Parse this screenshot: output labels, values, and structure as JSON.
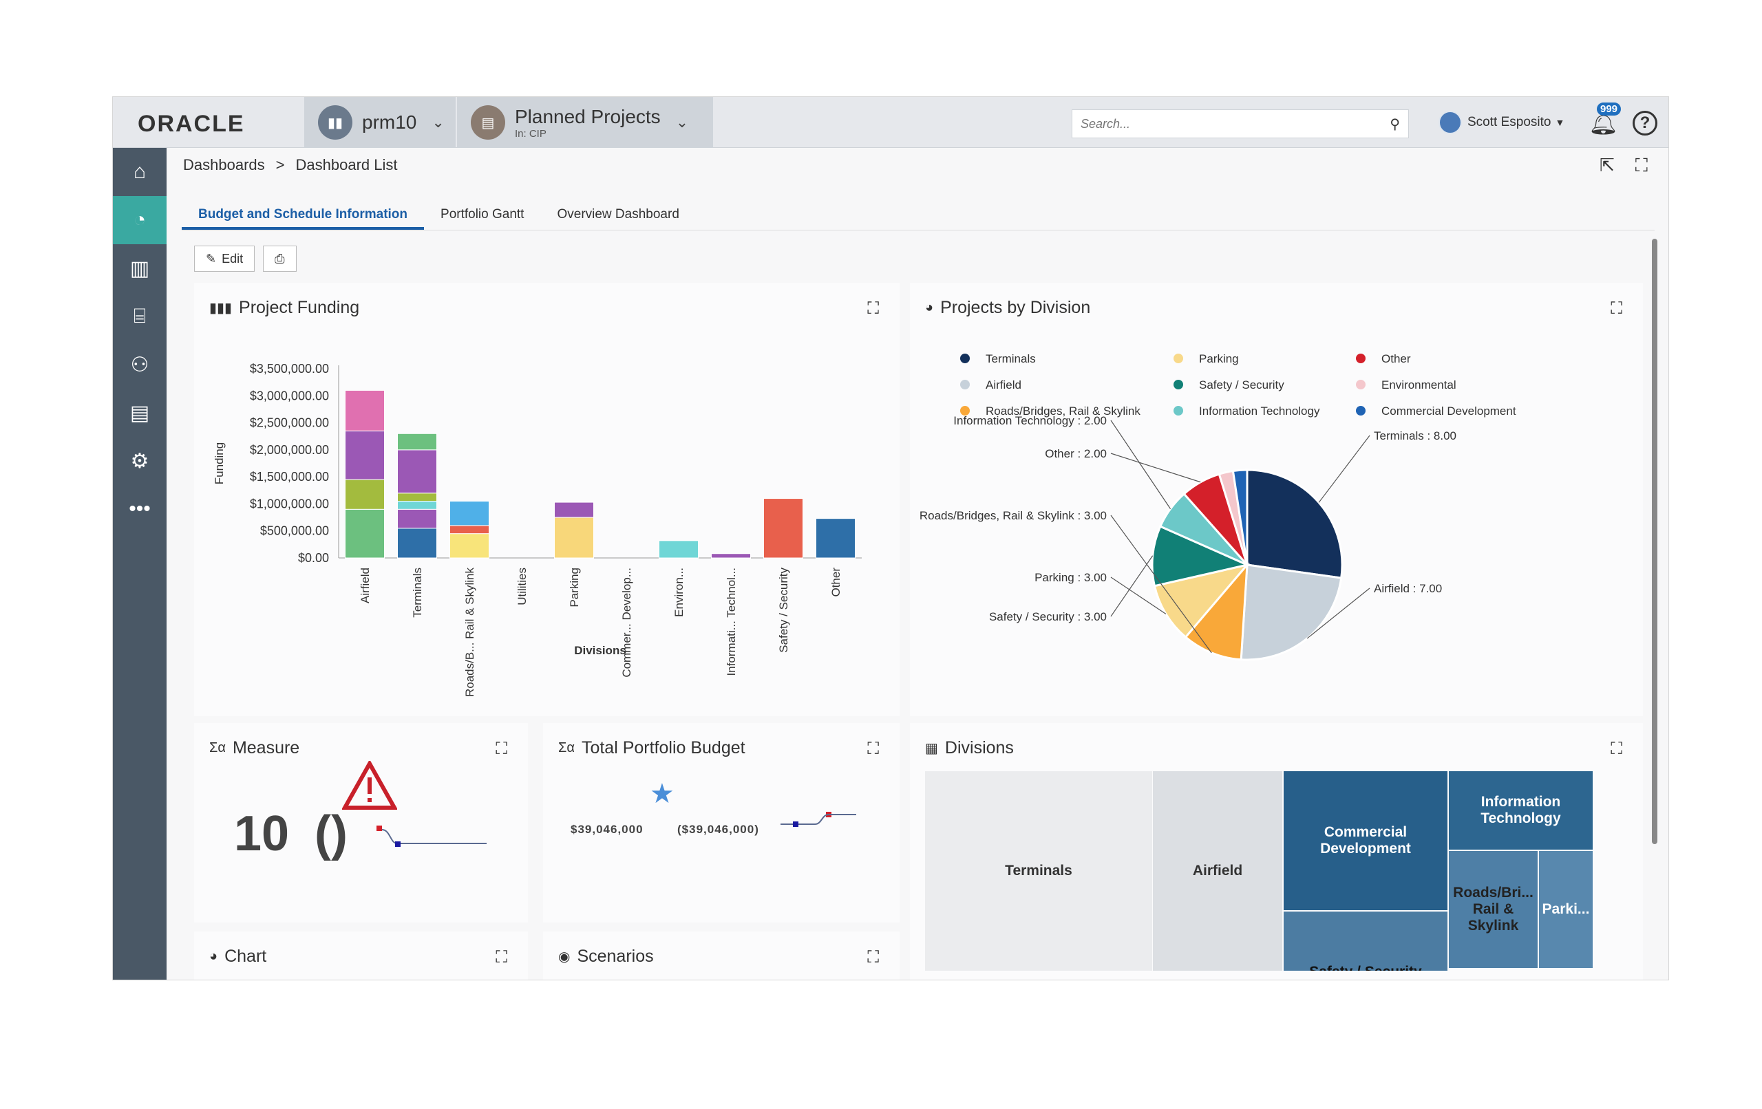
{
  "header": {
    "logo": "ORACLE",
    "context1": {
      "label": "prm10"
    },
    "context2": {
      "label": "Planned Projects",
      "sub": "In: CIP"
    },
    "search_placeholder": "Search...",
    "user_name": "Scott Esposito",
    "notification_count": "999"
  },
  "breadcrumb": {
    "root": "Dashboards",
    "separator": ">",
    "current": "Dashboard List"
  },
  "tabs": [
    "Budget and Schedule Information",
    "Portfolio Gantt",
    "Overview Dashboard"
  ],
  "toolbar": {
    "edit_label": "Edit"
  },
  "panels": {
    "project_funding": "Project Funding",
    "projects_by_division": "Projects by Division",
    "measure": "Measure",
    "total_portfolio_budget": "Total Portfolio Budget",
    "divisions": "Divisions",
    "chart": "Chart",
    "scenarios": "Scenarios"
  },
  "measure": {
    "value": "10",
    "paren": "()"
  },
  "tpb": {
    "value": "$39,046,000",
    "paren_value": "($39,046,000)"
  },
  "colors": {
    "accent": "#1b5ea6",
    "sidebar": "#4a5866",
    "sidebar_active": "#3aa9a1"
  },
  "chart_data": [
    {
      "type": "bar",
      "stacked": true,
      "title": "Project Funding",
      "xlabel": "Divisions",
      "ylabel": "Funding",
      "ylim": [
        0,
        3500000
      ],
      "yticks": [
        "$0.00",
        "$500,000.00",
        "$1,000,000.00",
        "$1,500,000.00",
        "$2,000,000.00",
        "$2,500,000.00",
        "$3,000,000.00",
        "$3,500,000.00"
      ],
      "categories": [
        "Airfield",
        "Terminals",
        "Roads/B... Rail & Skylink",
        "Utilities",
        "Parking",
        "Commer... Develop...",
        "Environ...",
        "Informati... Technol...",
        "Safety / Security",
        "Other"
      ],
      "segments": [
        [
          {
            "value": 900000,
            "color": "#6cc07f"
          },
          {
            "value": 550000,
            "color": "#a3bb3e"
          },
          {
            "value": 900000,
            "color": "#9b58b5"
          },
          {
            "value": 750000,
            "color": "#e070b0"
          }
        ],
        [
          {
            "value": 550000,
            "color": "#2e6fa8"
          },
          {
            "value": 350000,
            "color": "#9b58b5"
          },
          {
            "value": 150000,
            "color": "#6fd6d6"
          },
          {
            "value": 150000,
            "color": "#a3bb3e"
          },
          {
            "value": 800000,
            "color": "#9b58b5"
          },
          {
            "value": 300000,
            "color": "#6cc07f"
          }
        ],
        [
          {
            "value": 450000,
            "color": "#f8e47a"
          },
          {
            "value": 150000,
            "color": "#e8604c"
          },
          {
            "value": 450000,
            "color": "#4fb0e8"
          }
        ],
        [],
        [
          {
            "value": 750000,
            "color": "#f8d77a"
          },
          {
            "value": 280000,
            "color": "#9b58b5"
          }
        ],
        [],
        [
          {
            "value": 320000,
            "color": "#6fd6d6"
          }
        ],
        [
          {
            "value": 80000,
            "color": "#9b58b5"
          }
        ],
        [
          {
            "value": 1100000,
            "color": "#e8604c"
          }
        ],
        [
          {
            "value": 730000,
            "color": "#2e6fa8"
          }
        ]
      ]
    },
    {
      "type": "pie",
      "title": "Projects by Division",
      "legend_position": "top",
      "legend": [
        {
          "name": "Terminals",
          "color": "#13305b"
        },
        {
          "name": "Parking",
          "color": "#f8d98a"
        },
        {
          "name": "Other",
          "color": "#d4202a"
        },
        {
          "name": "Airfield",
          "color": "#c7d1da"
        },
        {
          "name": "Safety / Security",
          "color": "#118076"
        },
        {
          "name": "Environmental",
          "color": "#f4c7cc"
        },
        {
          "name": "Roads/Bridges, Rail & Skylink",
          "color": "#f9a839"
        },
        {
          "name": "Information Technology",
          "color": "#6cc8c8"
        },
        {
          "name": "Commercial Development",
          "color": "#1f63b4"
        }
      ],
      "slices": [
        {
          "name": "Terminals",
          "value": 8.0,
          "color": "#13305b",
          "label": "Terminals : 8.00"
        },
        {
          "name": "Airfield",
          "value": 7.0,
          "color": "#c7d1da",
          "label": "Airfield : 7.00"
        },
        {
          "name": "Roads/Bridges, Rail & Skylink",
          "value": 3.0,
          "color": "#f9a839",
          "label": ""
        },
        {
          "name": "Parking",
          "value": 3.0,
          "color": "#f8d98a",
          "label": "Parking : 3.00"
        },
        {
          "name": "Safety / Security",
          "value": 3.0,
          "color": "#118076",
          "label": "Safety / Security : 3.00"
        },
        {
          "name": "Information Technology",
          "value": 2.0,
          "color": "#6cc8c8",
          "label": "Information Technology : 2.00"
        },
        {
          "name": "Other",
          "value": 2.0,
          "color": "#d4202a",
          "label": "Other : 2.00"
        },
        {
          "name": "Environmental",
          "value": 0.7,
          "color": "#f4c7cc",
          "label": ""
        },
        {
          "name": "Commercial Development",
          "value": 0.7,
          "color": "#1f63b4",
          "label": ""
        }
      ],
      "extra_label": "Roads/Bridges, Rail & Skylink : 3.00"
    }
  ],
  "treemap": {
    "cells": [
      "Terminals",
      "Airfield",
      "Commercial Development",
      "Information Technology",
      "Roads/Bri... Rail & Skylink",
      "Parki...",
      "Safety / Security"
    ]
  }
}
